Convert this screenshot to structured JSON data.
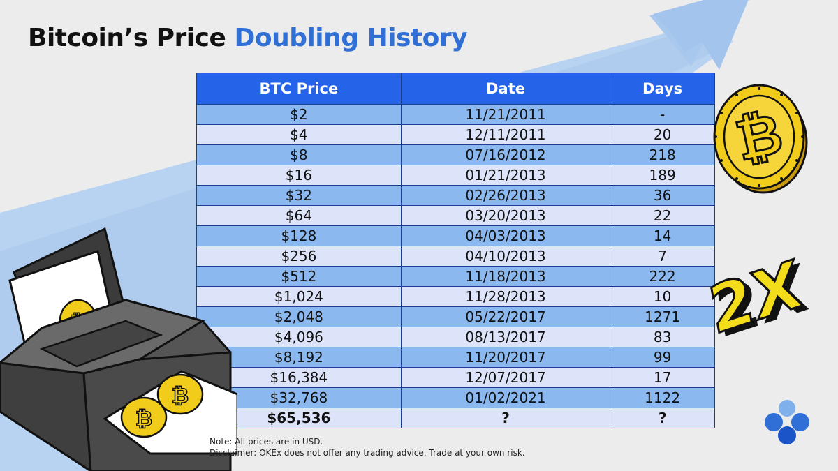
{
  "title": {
    "main": "Bitcoin’s Price",
    "accent": "Doubling History"
  },
  "table": {
    "headers": [
      "BTC Price",
      "Date",
      "Days"
    ],
    "rows": [
      {
        "price": "$2",
        "date": "11/21/2011",
        "days": "-"
      },
      {
        "price": "$4",
        "date": "12/11/2011",
        "days": "20"
      },
      {
        "price": "$8",
        "date": "07/16/2012",
        "days": "218"
      },
      {
        "price": "$16",
        "date": "01/21/2013",
        "days": "189"
      },
      {
        "price": "$32",
        "date": "02/26/2013",
        "days": "36"
      },
      {
        "price": "$64",
        "date": "03/20/2013",
        "days": "22"
      },
      {
        "price": "$128",
        "date": "04/03/2013",
        "days": "14"
      },
      {
        "price": "$256",
        "date": "04/10/2013",
        "days": "7"
      },
      {
        "price": "$512",
        "date": "11/18/2013",
        "days": "222"
      },
      {
        "price": "$1,024",
        "date": "11/28/2013",
        "days": "10"
      },
      {
        "price": "$2,048",
        "date": "05/22/2017",
        "days": "1271"
      },
      {
        "price": "$4,096",
        "date": "08/13/2017",
        "days": "83"
      },
      {
        "price": "$8,192",
        "date": "11/20/2017",
        "days": "99"
      },
      {
        "price": "$16,384",
        "date": "12/07/2017",
        "days": "17"
      },
      {
        "price": "$32,768",
        "date": "01/02/2021",
        "days": "1122"
      },
      {
        "price": "$65,536",
        "date": "?",
        "days": "?"
      }
    ]
  },
  "notes": {
    "line1": "Note: All prices are in USD.",
    "line2": "Disclaimer: OKEx does not offer any trading advice. Trade at your own risk."
  },
  "badge": {
    "text": "2X"
  },
  "colors": {
    "accent": "#2f6fd6",
    "header": "#2563e8",
    "row_dark": "#8ab8ef",
    "row_light": "#dde4f9",
    "coin": "#f2cc1b"
  },
  "icons": [
    "bitcoin-coin-icon",
    "printer-illustration",
    "growth-arrow",
    "okex-logo-icon"
  ]
}
